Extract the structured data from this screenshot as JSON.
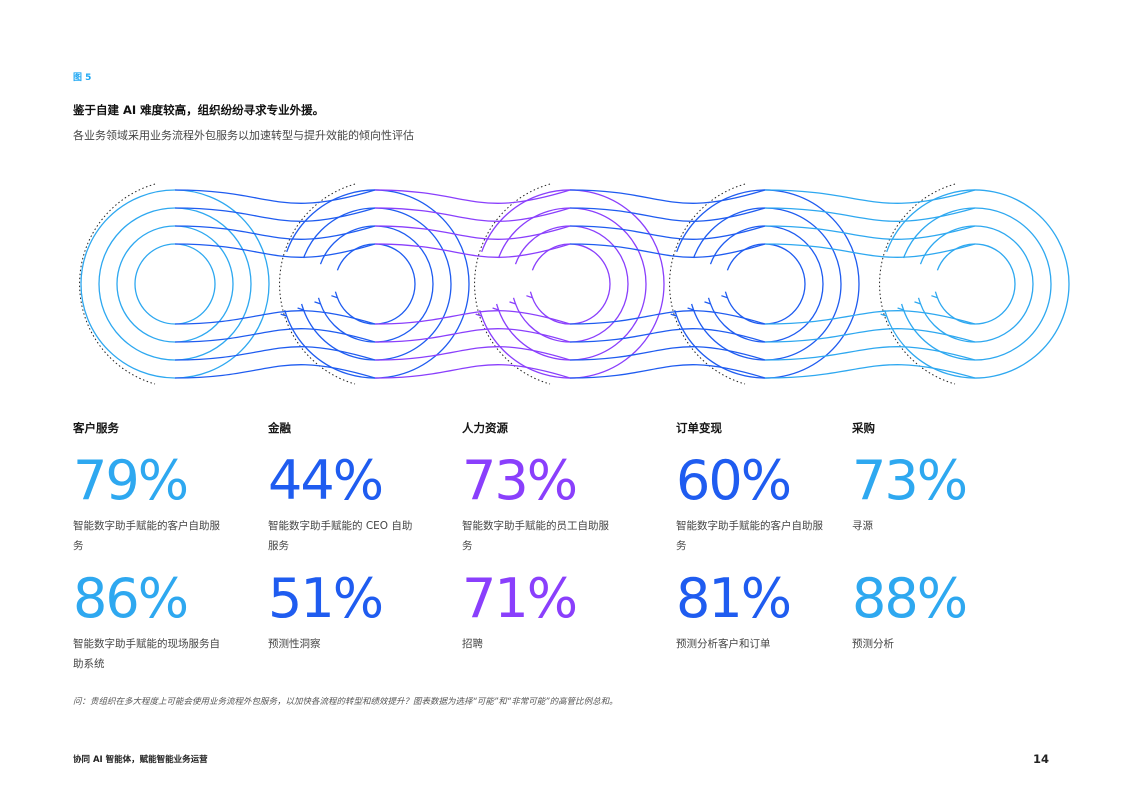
{
  "figure_label": "图 5",
  "headline": "鉴于自建 AI 难度较高，组织纷纷寻求专业外援。",
  "subheading": "各业务领域采用业务流程外包服务以加速转型与提升效能的倾向性评估",
  "colors": {
    "cyan": "#2ea8f0",
    "blue": "#1f5cf0",
    "purple": "#8a3ffc",
    "text": "#161616"
  },
  "columns": [
    {
      "category": "客户服务",
      "color": "#2ea8f0",
      "stats": [
        {
          "value": "79%",
          "desc": "智能数字助手赋能的客户自助服务"
        },
        {
          "value": "86%",
          "desc": "智能数字助手赋能的现场服务自助系统"
        }
      ]
    },
    {
      "category": "金融",
      "color": "#1f5cf0",
      "stats": [
        {
          "value": "44%",
          "desc": "智能数字助手赋能的 CEO 自助服务"
        },
        {
          "value": "51%",
          "desc": "预测性洞察"
        }
      ]
    },
    {
      "category": "人力资源",
      "color": "#8a3ffc",
      "stats": [
        {
          "value": "73%",
          "desc": "智能数字助手赋能的员工自助服务"
        },
        {
          "value": "71%",
          "desc": "招聘"
        }
      ]
    },
    {
      "category": "订单变现",
      "color": "#1f5cf0",
      "stats": [
        {
          "value": "60%",
          "desc": "智能数字助手赋能的客户自助服务"
        },
        {
          "value": "81%",
          "desc": "预测分析客户和订单"
        }
      ]
    },
    {
      "category": "采购",
      "color": "#2ea8f0",
      "stats": [
        {
          "value": "73%",
          "desc": "寻源"
        },
        {
          "value": "88%",
          "desc": "预测分析"
        }
      ]
    }
  ],
  "footnote": "问：贵组织在多大程度上可能会使用业务流程外包服务，以加快各流程的转型和绩效提升？图表数据为选择“可能”和“非常可能”的高管比例总和。",
  "footer": {
    "left": "协同 AI 智能体，赋能智能业务运营",
    "page_number": "14"
  }
}
